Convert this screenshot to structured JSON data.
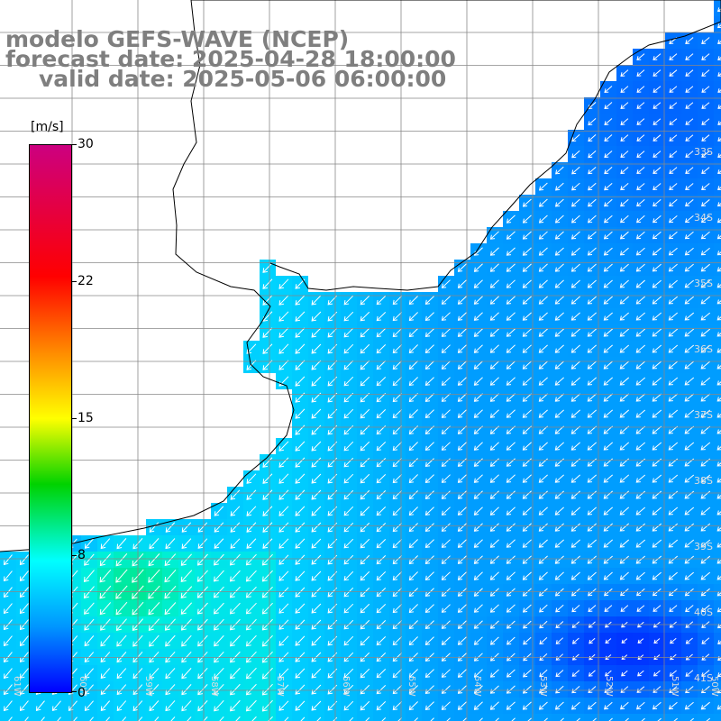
{
  "header": {
    "model": "modelo GEFS-WAVE (NCEP)",
    "forecast": "forecast date: 2025-04-28 18:00:00",
    "valid": "valid date: 2025-05-06 06:00:00"
  },
  "colorbar": {
    "unit": "[m/s]",
    "ticks": [
      "30",
      "22",
      "15",
      "8",
      "0"
    ],
    "tick_values": [
      30,
      22,
      15,
      8,
      0
    ]
  },
  "map": {
    "lat_labels": [
      "33S",
      "34S",
      "35S",
      "36S",
      "37S",
      "38S",
      "39S",
      "40S",
      "41S"
    ],
    "lon_labels": [
      "61W",
      "60W",
      "59W",
      "58W",
      "57W",
      "56W",
      "55W",
      "54W",
      "53W",
      "52W",
      "51W",
      "50W"
    ],
    "lat_range": [
      -41.5,
      -31
    ],
    "lon_range": [
      -61.7,
      -50.8
    ],
    "variable": "wind speed",
    "field_colors": {
      "land": "#ffffff",
      "ocean_base": "#2f8cff",
      "near_coast": "#35c8ff",
      "high_wind_patch": "#33e8a8",
      "low_wind_patch": "#1656f0"
    }
  }
}
